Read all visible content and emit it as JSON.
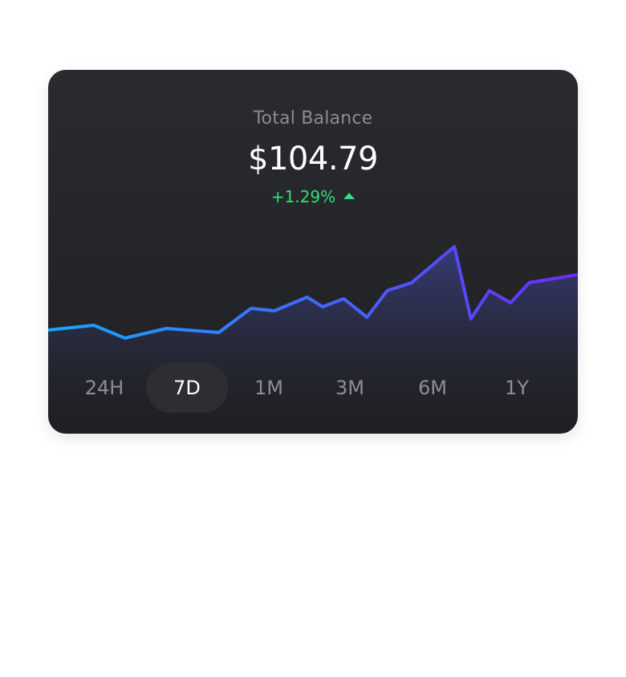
{
  "card": {
    "title": "Total Balance",
    "balance": "$104.79",
    "change": "+1.29%",
    "change_direction_icon": "caret-up-icon",
    "change_color": "#2ee07c"
  },
  "ranges": [
    {
      "label": "24H",
      "active": false
    },
    {
      "label": "7D",
      "active": true
    },
    {
      "label": "1M",
      "active": false
    },
    {
      "label": "3M",
      "active": false
    },
    {
      "label": "6M",
      "active": false
    },
    {
      "label": "1Y",
      "active": false
    }
  ],
  "colors": {
    "line_start": "#16a6ff",
    "line_end": "#6b2cff",
    "card_background": "#232427",
    "active_range_background": "#2d2e32"
  },
  "chart_data": {
    "type": "area",
    "x": [
      0,
      0.086,
      0.145,
      0.223,
      0.322,
      0.383,
      0.427,
      0.489,
      0.518,
      0.558,
      0.602,
      0.64,
      0.686,
      0.767,
      0.798,
      0.833,
      0.873,
      0.908,
      1.0
    ],
    "values": [
      41,
      47,
      31,
      43,
      38,
      68,
      65,
      82,
      70,
      80,
      57,
      90,
      100,
      145,
      55,
      90,
      75,
      100,
      110
    ],
    "ylim": [
      0,
      190
    ]
  }
}
